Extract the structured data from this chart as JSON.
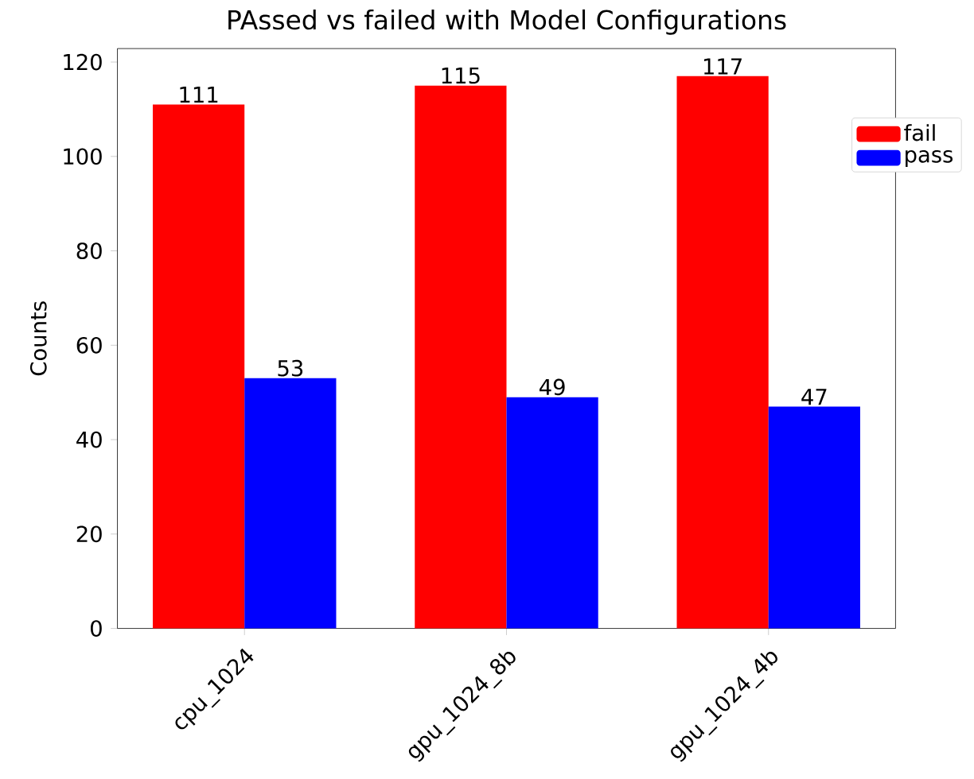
{
  "chart_data": {
    "type": "bar",
    "title": "PAssed vs failed with Model Configurations",
    "ylabel": "Counts",
    "categories": [
      "cpu_1024",
      "gpu_1024_8b",
      "gpu_1024_4b"
    ],
    "series": [
      {
        "name": "fail",
        "color": "#ff0000",
        "values": [
          111,
          115,
          117
        ]
      },
      {
        "name": "pass",
        "color": "#0000ff",
        "values": [
          53,
          49,
          47
        ]
      }
    ],
    "ylim": [
      0,
      122.85
    ],
    "yticks": [
      0,
      20,
      40,
      60,
      80,
      100,
      120
    ],
    "data_labels": true,
    "legend": "top right"
  }
}
